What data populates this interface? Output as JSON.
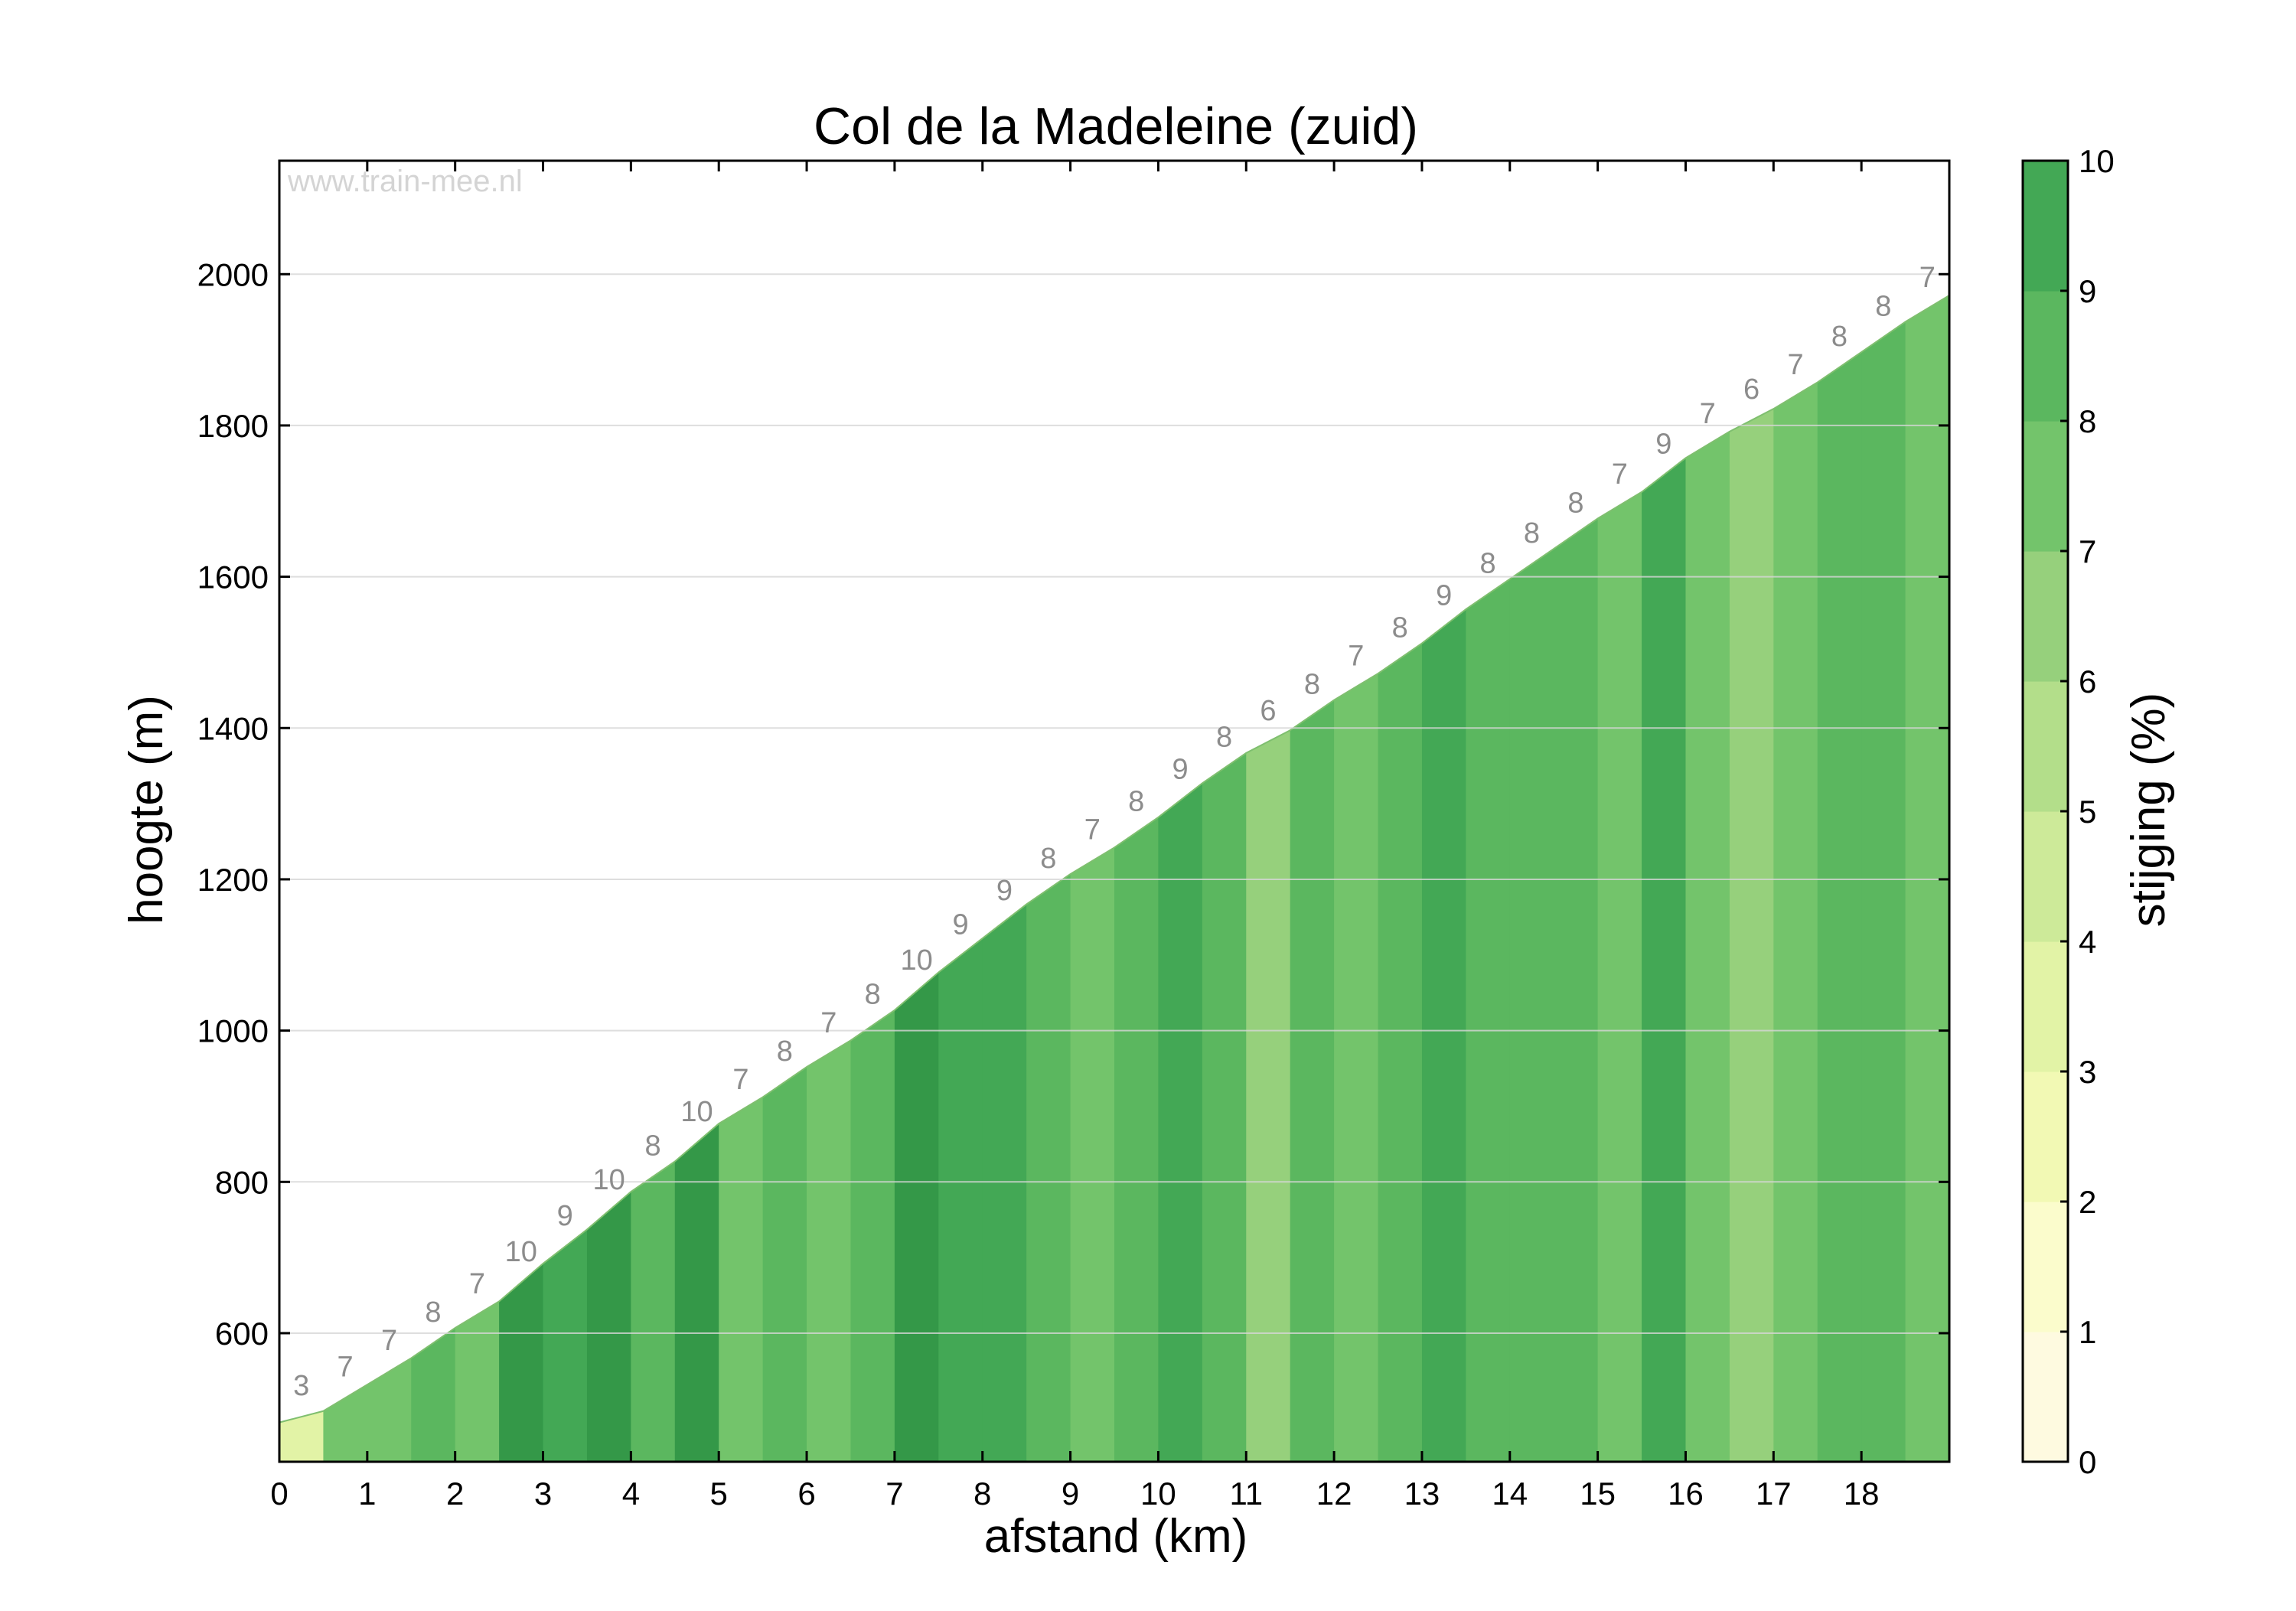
{
  "chart_data": {
    "type": "area",
    "title": "Col de la Madeleine (zuid)",
    "xlabel": "afstand (km)",
    "ylabel": "hoogte (m)",
    "xlim": [
      0,
      19
    ],
    "ylim": [
      430,
      2150
    ],
    "xticks": [
      0,
      1,
      2,
      3,
      4,
      5,
      6,
      7,
      8,
      9,
      10,
      11,
      12,
      13,
      14,
      15,
      16,
      17,
      18
    ],
    "yticks": [
      600,
      800,
      1000,
      1200,
      1400,
      1600,
      1800,
      2000
    ],
    "grid": true,
    "watermark": "www.train-mee.nl",
    "colorbar": {
      "label": "stijging (%)",
      "min": 0,
      "max": 10,
      "ticks": [
        0,
        1,
        2,
        3,
        4,
        5,
        6,
        7,
        8,
        9,
        10
      ],
      "colors": [
        "#fefae0",
        "#fbfccc",
        "#f2f9b4",
        "#e2f3a6",
        "#cdea99",
        "#b3de8a",
        "#96d07c",
        "#73c46b",
        "#5bb75f",
        "#43a855",
        "#349848"
      ]
    },
    "segment_length_km": 0.5,
    "start_elevation": 482,
    "gradients": [
      3,
      7,
      7,
      8,
      7,
      10,
      9,
      10,
      8,
      10,
      7,
      8,
      7,
      8,
      10,
      9,
      9,
      8,
      7,
      8,
      9,
      8,
      6,
      8,
      7,
      8,
      9,
      8,
      8,
      8,
      7,
      9,
      7,
      6,
      7,
      8,
      8,
      7
    ]
  }
}
